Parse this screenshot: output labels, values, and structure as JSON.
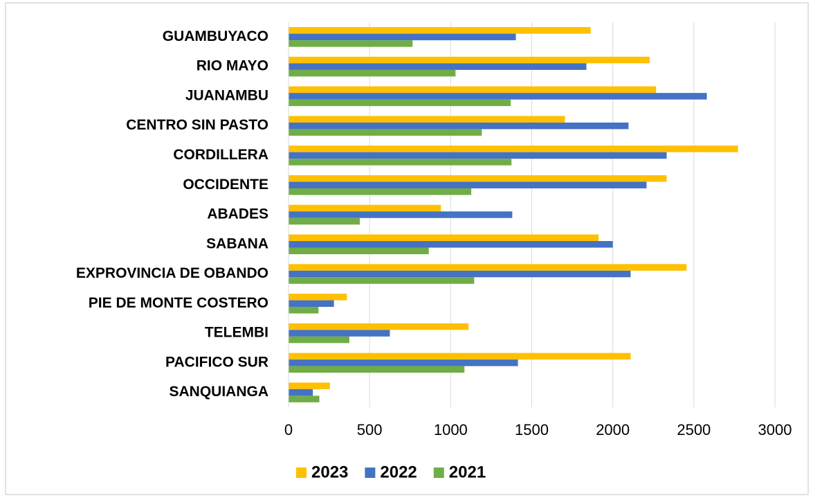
{
  "chart_data": {
    "type": "hbar",
    "categories": [
      "GUAMBUYACO",
      "RIO MAYO",
      "JUANAMBU",
      "CENTRO SIN PASTO",
      "CORDILLERA",
      "OCCIDENTE",
      "ABADES",
      "SABANA",
      "EXPROVINCIA DE OBANDO",
      "PIE DE MONTE COSTERO",
      "TELEMBI",
      "PACIFICO SUR",
      "SANQUIANGA"
    ],
    "series": [
      {
        "name": "2023",
        "color": "#ffc000",
        "values": [
          1863,
          2227,
          2267,
          1705,
          2772,
          2332,
          940,
          1912,
          2455,
          360,
          1110,
          2110,
          255
        ]
      },
      {
        "name": "2022",
        "color": "#4472c4",
        "values": [
          1402,
          1837,
          2580,
          2097,
          2332,
          2208,
          1380,
          2000,
          2110,
          280,
          625,
          1415,
          150
        ]
      },
      {
        "name": "2021",
        "color": "#70ad47",
        "values": [
          765,
          1030,
          1370,
          1192,
          1375,
          1127,
          440,
          865,
          1145,
          185,
          375,
          1085,
          190
        ]
      }
    ],
    "xlim": [
      0,
      3000
    ],
    "xticks": [
      0,
      500,
      1000,
      1500,
      2000,
      2500,
      3000
    ],
    "grid": true,
    "legend": "bottom"
  }
}
